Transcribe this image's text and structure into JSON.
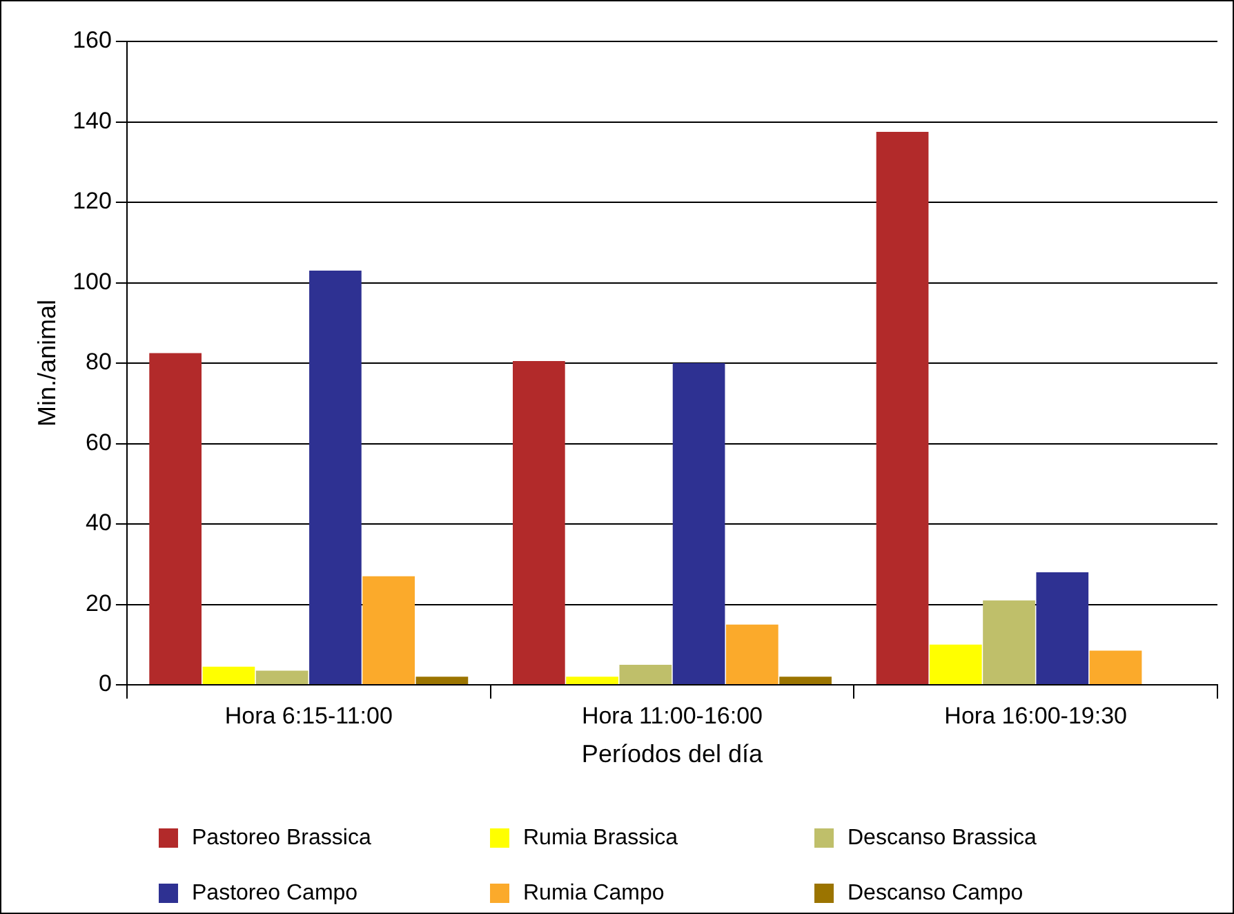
{
  "chart_data": {
    "type": "bar",
    "xlabel": "Períodos del día",
    "ylabel": "Min./animal",
    "categories": [
      "Hora 6:15-11:00",
      "Hora 11:00-16:00",
      "Hora 16:00-19:30"
    ],
    "series": [
      {
        "name": "Pastoreo Brassica",
        "color": "#b22a2a",
        "values": [
          82.5,
          80.5,
          137.5
        ]
      },
      {
        "name": "Rumia Brassica",
        "color": "#ffff00",
        "values": [
          4.5,
          2,
          10
        ]
      },
      {
        "name": "Descanso Brassica",
        "color": "#bfbf6a",
        "values": [
          3.5,
          5,
          21
        ]
      },
      {
        "name": "Pastoreo Campo",
        "color": "#2e3192",
        "values": [
          103,
          80,
          28
        ]
      },
      {
        "name": "Rumia Campo",
        "color": "#fbaa2b",
        "values": [
          27,
          15,
          8.5
        ]
      },
      {
        "name": "Descanso Campo",
        "color": "#9b7400",
        "values": [
          2,
          2,
          0
        ]
      }
    ],
    "ylim": [
      0,
      160
    ],
    "yticks": [
      0,
      20,
      40,
      60,
      80,
      100,
      120,
      140,
      160
    ],
    "grid": "y",
    "legend": "bottom"
  }
}
